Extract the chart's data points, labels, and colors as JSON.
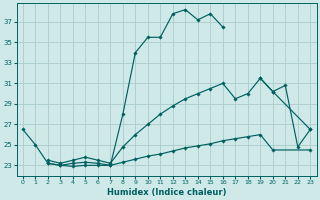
{
  "xlabel": "Humidex (Indice chaleur)",
  "bg_color": "#cfe9e9",
  "grid_color": "#b0d0d0",
  "line_color": "#006060",
  "xlim": [
    -0.5,
    23.5
  ],
  "ylim": [
    22.0,
    38.8
  ],
  "yticks": [
    23,
    25,
    27,
    29,
    31,
    33,
    35,
    37
  ],
  "xticks": [
    0,
    1,
    2,
    3,
    4,
    5,
    6,
    7,
    8,
    9,
    10,
    11,
    12,
    13,
    14,
    15,
    16,
    17,
    18,
    19,
    20,
    21,
    22,
    23
  ],
  "series": [
    {
      "x": [
        0,
        1,
        2,
        3,
        4,
        5,
        6,
        7,
        8,
        9,
        10,
        11,
        12,
        13,
        14,
        15,
        16
      ],
      "y": [
        26.5,
        25.0,
        23.2,
        23.0,
        22.9,
        23.0,
        23.0,
        23.0,
        28.0,
        34.0,
        35.5,
        35.5,
        37.8,
        38.2,
        37.2,
        37.8,
        36.5
      ]
    },
    {
      "x": [
        19,
        20,
        23
      ],
      "y": [
        31.5,
        30.2,
        26.5
      ]
    },
    {
      "x": [
        2,
        3,
        4,
        5,
        6,
        7,
        8,
        9,
        10,
        11,
        12,
        13,
        14,
        15,
        16,
        17,
        18,
        19,
        20,
        21,
        22,
        23
      ],
      "y": [
        23.5,
        23.2,
        23.5,
        23.8,
        23.5,
        23.2,
        24.8,
        26.0,
        27.0,
        28.0,
        28.8,
        29.5,
        30.0,
        30.5,
        31.0,
        29.5,
        30.0,
        31.5,
        30.2,
        30.8,
        24.8,
        26.5
      ]
    },
    {
      "x": [
        2,
        3,
        4,
        5,
        6,
        7,
        8,
        9,
        10,
        11,
        12,
        13,
        14,
        15,
        16,
        17,
        18,
        19,
        20,
        23
      ],
      "y": [
        23.2,
        23.0,
        23.2,
        23.3,
        23.2,
        23.0,
        23.3,
        23.6,
        23.9,
        24.1,
        24.4,
        24.7,
        24.9,
        25.1,
        25.4,
        25.6,
        25.8,
        26.0,
        24.5,
        24.5
      ]
    }
  ]
}
